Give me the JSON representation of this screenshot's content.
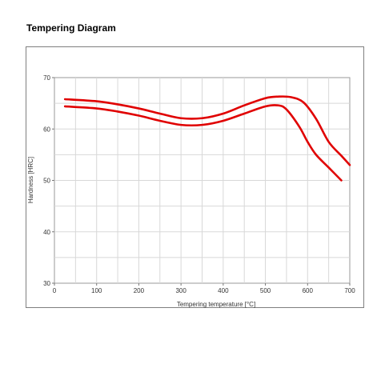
{
  "page": {
    "title": "Tempering Diagram"
  },
  "chart_data": {
    "type": "line",
    "title": "",
    "xlabel": "Tempering temperature [°C]",
    "ylabel": "Hardness [HRC]",
    "xlim": [
      0,
      700
    ],
    "ylim": [
      30,
      70
    ],
    "xticks": [
      0,
      100,
      200,
      300,
      400,
      500,
      600,
      700
    ],
    "yticks": [
      30,
      40,
      50,
      60,
      70
    ],
    "grid": true,
    "line_color": "#e00000",
    "series": [
      {
        "x": [
          25,
          100,
          150,
          200,
          250,
          300,
          350,
          400,
          450,
          500,
          530,
          560,
          590,
          620,
          650,
          680,
          700
        ],
        "y": [
          65.8,
          65.4,
          64.8,
          64.0,
          63.0,
          62.1,
          62.1,
          63.0,
          64.6,
          66.0,
          66.3,
          66.2,
          65.2,
          62.0,
          57.5,
          54.8,
          53.0
        ]
      },
      {
        "x": [
          25,
          100,
          150,
          200,
          250,
          300,
          350,
          400,
          450,
          500,
          530,
          550,
          580,
          600,
          620,
          650,
          680
        ],
        "y": [
          64.4,
          64.0,
          63.4,
          62.6,
          61.6,
          60.8,
          60.8,
          61.6,
          63.0,
          64.4,
          64.6,
          63.8,
          60.5,
          57.5,
          55.0,
          52.5,
          50.0
        ]
      }
    ]
  }
}
